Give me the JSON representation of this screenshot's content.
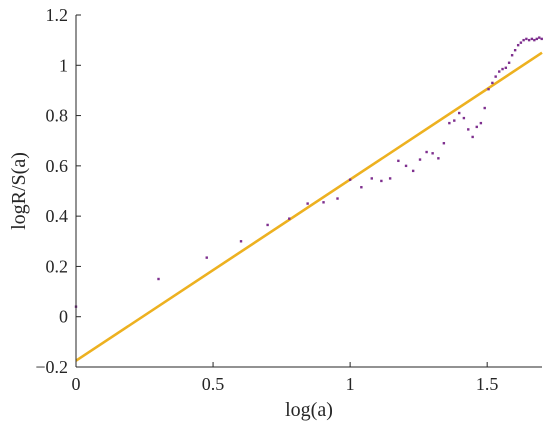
{
  "chart_data": {
    "type": "scatter",
    "title": "",
    "xlabel": "log(a)",
    "ylabel": "logR/S(a)",
    "xlim": [
      0,
      1.7
    ],
    "ylim": [
      -0.2,
      1.2
    ],
    "x_ticks": [
      0,
      0.5,
      1,
      1.5
    ],
    "x_tick_labels": [
      "0",
      "0.5",
      "1",
      "1.5"
    ],
    "y_ticks": [
      -0.2,
      0,
      0.2,
      0.4,
      0.6,
      0.8,
      1,
      1.2
    ],
    "y_tick_labels": [
      "−0.2",
      "0",
      "0.2",
      "0.4",
      "0.6",
      "0.8",
      "1",
      "1.2"
    ],
    "grid": false,
    "legend": "none",
    "colors": {
      "scatter": "#7E2F8E",
      "fit_line": "#EDB120",
      "axis": "#262626"
    },
    "series": [
      {
        "type": "scatter",
        "x": [
          0.0,
          0.301,
          0.477,
          0.602,
          0.699,
          0.778,
          0.845,
          0.903,
          0.954,
          1.0,
          1.041,
          1.079,
          1.114,
          1.146,
          1.176,
          1.204,
          1.23,
          1.255,
          1.279,
          1.301,
          1.322,
          1.342,
          1.362,
          1.38,
          1.398,
          1.415,
          1.431,
          1.447,
          1.462,
          1.477,
          1.491,
          1.505,
          1.519,
          1.531,
          1.544,
          1.556,
          1.568,
          1.58,
          1.591,
          1.602,
          1.613,
          1.623,
          1.633,
          1.643,
          1.653,
          1.663,
          1.672,
          1.681,
          1.69,
          1.699
        ],
        "y": [
          0.04,
          0.15,
          0.235,
          0.3,
          0.365,
          0.39,
          0.45,
          0.455,
          0.47,
          0.545,
          0.515,
          0.55,
          0.54,
          0.55,
          0.62,
          0.6,
          0.58,
          0.625,
          0.655,
          0.65,
          0.63,
          0.69,
          0.77,
          0.78,
          0.81,
          0.79,
          0.745,
          0.715,
          0.755,
          0.77,
          0.83,
          0.905,
          0.93,
          0.955,
          0.975,
          0.985,
          0.99,
          1.01,
          1.04,
          1.06,
          1.08,
          1.09,
          1.1,
          1.105,
          1.1,
          1.105,
          1.1,
          1.105,
          1.11,
          1.105
        ]
      },
      {
        "type": "line",
        "x": [
          0,
          1.7
        ],
        "y": [
          -0.175,
          1.05
        ]
      }
    ]
  }
}
